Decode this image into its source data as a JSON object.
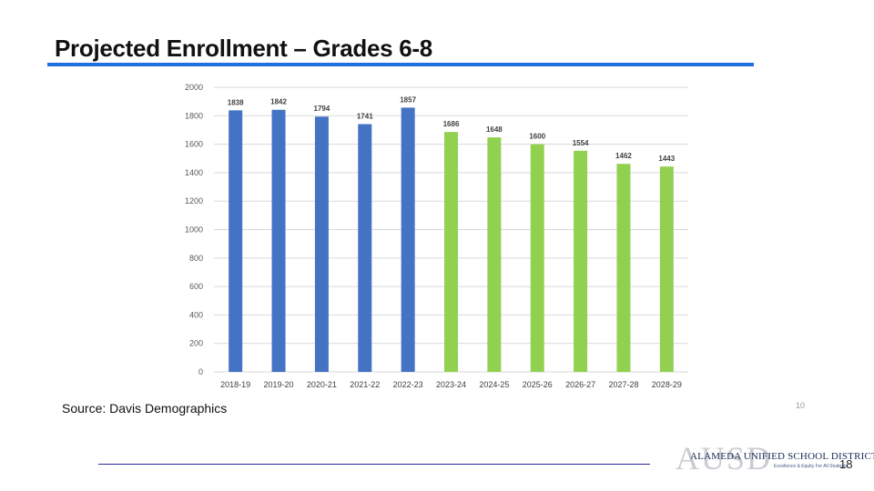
{
  "slide": {
    "title": "Projected Enrollment – Grades 6-8",
    "source": "Source: Davis Demographics",
    "small_page_number": "10",
    "page_number": "18",
    "logo": {
      "letters": "AUSD",
      "name": "ALAMEDA UNIFIED SCHOOL DISTRICT",
      "tagline": "Excellence & Equity For All Students"
    }
  },
  "colors": {
    "title_rule": "#1f6fe0",
    "historical_bar": "#4472c4",
    "projected_bar": "#92d050",
    "footer_rule": "#2a2aa0"
  },
  "chart_data": {
    "type": "bar",
    "title": "",
    "xlabel": "",
    "ylabel": "",
    "categories": [
      "2018-19",
      "2019-20",
      "2020-21",
      "2021-22",
      "2022-23",
      "2023-24",
      "2024-25",
      "2025-26",
      "2026-27",
      "2027-28",
      "2028-29"
    ],
    "values": [
      1838,
      1842,
      1794,
      1741,
      1857,
      1686,
      1648,
      1600,
      1554,
      1462,
      1443
    ],
    "bar_groups": [
      "historical",
      "historical",
      "historical",
      "historical",
      "historical",
      "projected",
      "projected",
      "projected",
      "projected",
      "projected",
      "projected"
    ],
    "ylim": [
      0,
      2000
    ],
    "yticks": [
      0,
      200,
      400,
      600,
      800,
      1000,
      1200,
      1400,
      1600,
      1800,
      2000
    ],
    "grid": true,
    "data_labels": true,
    "legend": "none"
  }
}
